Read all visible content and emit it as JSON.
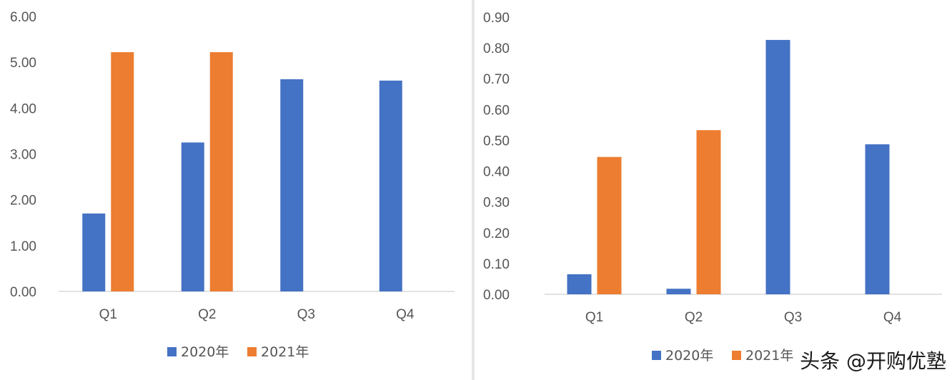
{
  "colors": {
    "s2020": "#4472C4",
    "s2021": "#ED7D31"
  },
  "chart_data": [
    {
      "type": "bar",
      "categories": [
        "Q1",
        "Q2",
        "Q3",
        "Q4"
      ],
      "series": [
        {
          "name": "2020年",
          "values": [
            1.7,
            3.25,
            4.63,
            4.6
          ]
        },
        {
          "name": "2021年",
          "values": [
            5.22,
            5.22,
            null,
            null
          ]
        }
      ],
      "ylim": [
        0,
        6
      ],
      "yticks": [
        "0.00",
        "1.00",
        "2.00",
        "3.00",
        "4.00",
        "5.00",
        "6.00"
      ],
      "legend": "bottom"
    },
    {
      "type": "bar",
      "categories": [
        "Q1",
        "Q2",
        "Q3",
        "Q4"
      ],
      "series": [
        {
          "name": "2020年",
          "values": [
            0.065,
            0.018,
            0.826,
            0.487
          ]
        },
        {
          "name": "2021年",
          "values": [
            0.446,
            0.533,
            null,
            null
          ]
        }
      ],
      "ylim": [
        0,
        0.9
      ],
      "yticks": [
        "0.00",
        "0.10",
        "0.20",
        "0.30",
        "0.40",
        "0.50",
        "0.60",
        "0.70",
        "0.80",
        "0.90"
      ],
      "legend": "bottom"
    }
  ],
  "watermark": "头条 @开购优塾"
}
